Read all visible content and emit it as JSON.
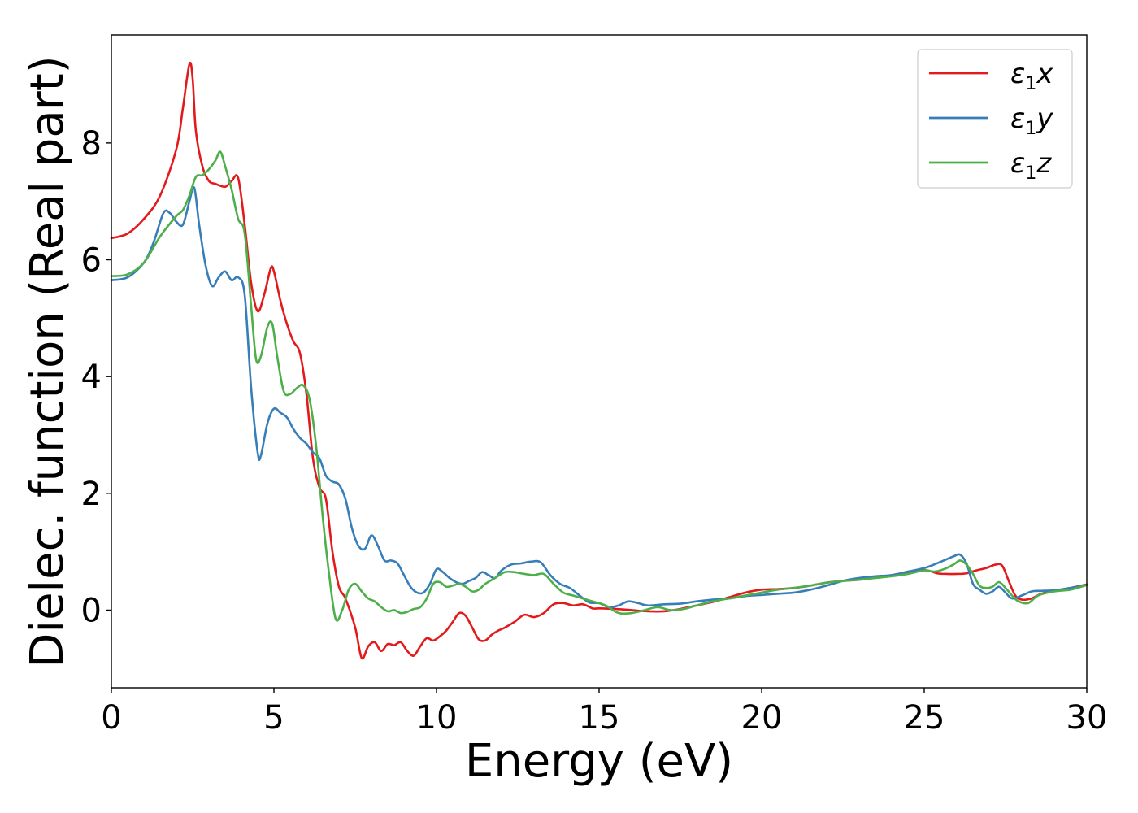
{
  "chart_data": {
    "type": "line",
    "title": "",
    "xlabel": "Energy (eV)",
    "ylabel": "Dielec. function (Real part)",
    "xlim": [
      0,
      30
    ],
    "ylim": [
      -1.33,
      9.85
    ],
    "xticks": [
      "0",
      "5",
      "10",
      "15",
      "20",
      "25",
      "30"
    ],
    "xtick_values": [
      0,
      5,
      10,
      15,
      20,
      25,
      30
    ],
    "yticks": [
      "0",
      "2",
      "4",
      "6",
      "8"
    ],
    "ytick_values": [
      0,
      2,
      4,
      6,
      8
    ],
    "grid": false,
    "legend_position": "top-right",
    "series": [
      {
        "name": "ε1x",
        "legend_main": "ε",
        "legend_sub": "1",
        "legend_tail": "x",
        "color": "#e31a1c",
        "x": [
          0,
          0.5,
          1,
          1.5,
          2,
          2.2,
          2.4,
          2.5,
          2.6,
          2.8,
          3,
          3.2,
          3.5,
          3.7,
          3.9,
          4.1,
          4.3,
          4.5,
          4.7,
          4.9,
          5,
          5.2,
          5.4,
          5.6,
          5.8,
          6,
          6.2,
          6.4,
          6.6,
          6.8,
          7,
          7.2,
          7.5,
          7.7,
          7.9,
          8.1,
          8.3,
          8.5,
          8.7,
          8.9,
          9.1,
          9.3,
          9.5,
          9.7,
          9.9,
          10.1,
          10.3,
          10.5,
          10.7,
          10.9,
          11.1,
          11.3,
          11.5,
          11.7,
          11.9,
          12.1,
          12.4,
          12.7,
          13,
          13.3,
          13.6,
          13.9,
          14.2,
          14.5,
          14.8,
          15,
          15.5,
          16,
          16.5,
          17,
          17.5,
          18,
          18.5,
          19,
          19.5,
          20,
          20.5,
          21,
          21.5,
          22,
          22.5,
          23,
          23.5,
          24,
          24.5,
          24.8,
          25.1,
          25.4,
          25.7,
          26,
          26.3,
          26.6,
          26.9,
          27.2,
          27.4,
          27.6,
          27.8,
          28,
          28.3,
          28.6,
          29,
          29.5,
          30
        ],
        "y": [
          6.37,
          6.45,
          6.7,
          7.1,
          7.9,
          8.6,
          9.35,
          9.1,
          8.2,
          7.6,
          7.35,
          7.3,
          7.25,
          7.35,
          7.4,
          6.6,
          5.6,
          5.12,
          5.4,
          5.85,
          5.8,
          5.3,
          4.9,
          4.6,
          4.4,
          3.7,
          2.6,
          2.1,
          1.9,
          1.0,
          0.4,
          0.2,
          -0.3,
          -0.82,
          -0.62,
          -0.55,
          -0.7,
          -0.58,
          -0.6,
          -0.55,
          -0.7,
          -0.78,
          -0.62,
          -0.48,
          -0.52,
          -0.45,
          -0.35,
          -0.2,
          -0.05,
          -0.1,
          -0.3,
          -0.5,
          -0.52,
          -0.42,
          -0.35,
          -0.3,
          -0.2,
          -0.08,
          -0.12,
          -0.05,
          0.1,
          0.12,
          0.08,
          0.1,
          0.03,
          0.03,
          0.02,
          0.0,
          -0.02,
          -0.02,
          0.02,
          0.08,
          0.14,
          0.22,
          0.3,
          0.35,
          0.36,
          0.38,
          0.42,
          0.47,
          0.5,
          0.52,
          0.56,
          0.6,
          0.65,
          0.68,
          0.68,
          0.63,
          0.62,
          0.62,
          0.63,
          0.68,
          0.72,
          0.78,
          0.76,
          0.5,
          0.25,
          0.18,
          0.2,
          0.28,
          0.33,
          0.38,
          0.44
        ]
      },
      {
        "name": "ε1y",
        "legend_main": "ε",
        "legend_sub": "1",
        "legend_tail": "y",
        "color": "#377eb8",
        "x": [
          0,
          0.5,
          1,
          1.3,
          1.6,
          1.8,
          2,
          2.2,
          2.4,
          2.55,
          2.7,
          2.9,
          3.1,
          3.3,
          3.5,
          3.7,
          3.9,
          4.1,
          4.3,
          4.5,
          4.6,
          4.8,
          5,
          5.2,
          5.4,
          5.6,
          5.8,
          6,
          6.2,
          6.4,
          6.6,
          6.8,
          7,
          7.2,
          7.4,
          7.6,
          7.8,
          8,
          8.2,
          8.4,
          8.6,
          8.8,
          9,
          9.2,
          9.4,
          9.6,
          9.8,
          10,
          10.2,
          10.4,
          10.6,
          10.8,
          11,
          11.2,
          11.4,
          11.6,
          11.8,
          12,
          12.3,
          12.6,
          12.9,
          13.2,
          13.5,
          13.8,
          14.1,
          14.4,
          14.7,
          15,
          15.3,
          15.6,
          15.9,
          16.2,
          16.5,
          17,
          17.5,
          18,
          18.5,
          19,
          19.5,
          20,
          20.5,
          21,
          21.5,
          22,
          22.5,
          23,
          23.5,
          24,
          24.5,
          25,
          25.3,
          25.6,
          25.9,
          26.1,
          26.3,
          26.5,
          26.7,
          26.9,
          27.1,
          27.3,
          27.5,
          27.7,
          28,
          28.3,
          28.6,
          29,
          29.5,
          30
        ],
        "y": [
          5.65,
          5.7,
          5.95,
          6.3,
          6.8,
          6.8,
          6.65,
          6.6,
          7.0,
          7.23,
          6.6,
          5.9,
          5.55,
          5.7,
          5.8,
          5.65,
          5.7,
          5.4,
          3.8,
          2.7,
          2.65,
          3.2,
          3.45,
          3.38,
          3.3,
          3.1,
          2.95,
          2.85,
          2.7,
          2.6,
          2.3,
          2.2,
          2.15,
          1.9,
          1.4,
          1.1,
          1.05,
          1.28,
          1.1,
          0.85,
          0.85,
          0.8,
          0.6,
          0.4,
          0.3,
          0.3,
          0.45,
          0.7,
          0.65,
          0.55,
          0.48,
          0.45,
          0.5,
          0.55,
          0.65,
          0.6,
          0.55,
          0.68,
          0.78,
          0.8,
          0.83,
          0.82,
          0.6,
          0.45,
          0.38,
          0.25,
          0.13,
          0.12,
          0.05,
          0.08,
          0.15,
          0.12,
          0.08,
          0.1,
          0.11,
          0.15,
          0.18,
          0.2,
          0.24,
          0.26,
          0.28,
          0.3,
          0.35,
          0.42,
          0.5,
          0.55,
          0.58,
          0.6,
          0.66,
          0.72,
          0.78,
          0.85,
          0.92,
          0.95,
          0.8,
          0.45,
          0.35,
          0.28,
          0.32,
          0.4,
          0.3,
          0.2,
          0.25,
          0.32,
          0.33,
          0.34,
          0.38,
          0.43
        ]
      },
      {
        "name": "ε1z",
        "legend_main": "ε",
        "legend_sub": "1",
        "legend_tail": "z",
        "color": "#4daf4a",
        "x": [
          0,
          0.5,
          1,
          1.5,
          2,
          2.2,
          2.4,
          2.6,
          2.8,
          3,
          3.2,
          3.35,
          3.5,
          3.7,
          3.9,
          4.1,
          4.3,
          4.45,
          4.6,
          4.8,
          4.95,
          5.1,
          5.3,
          5.5,
          5.7,
          5.9,
          6.1,
          6.3,
          6.5,
          6.7,
          6.9,
          7.1,
          7.3,
          7.5,
          7.7,
          7.9,
          8.1,
          8.3,
          8.5,
          8.7,
          8.9,
          9.1,
          9.3,
          9.5,
          9.7,
          9.9,
          10.1,
          10.3,
          10.5,
          10.7,
          10.9,
          11.1,
          11.3,
          11.5,
          11.8,
          12.1,
          12.4,
          12.7,
          13,
          13.3,
          13.6,
          13.9,
          14.2,
          14.5,
          14.8,
          15.2,
          15.6,
          16,
          16.4,
          16.8,
          17.2,
          17.6,
          18,
          18.5,
          19,
          19.5,
          20,
          20.5,
          21,
          21.5,
          22,
          22.5,
          23,
          23.5,
          24,
          24.5,
          25,
          25.3,
          25.6,
          25.9,
          26.1,
          26.3,
          26.5,
          26.7,
          26.9,
          27.1,
          27.3,
          27.5,
          27.7,
          27.9,
          28.2,
          28.5,
          29,
          29.5,
          30
        ],
        "y": [
          5.72,
          5.75,
          5.95,
          6.4,
          6.75,
          6.85,
          7.1,
          7.42,
          7.45,
          7.55,
          7.7,
          7.85,
          7.6,
          7.2,
          6.7,
          6.45,
          5.2,
          4.3,
          4.35,
          4.85,
          4.9,
          4.35,
          3.75,
          3.7,
          3.8,
          3.85,
          3.6,
          2.8,
          1.6,
          0.6,
          -0.15,
          0.0,
          0.35,
          0.45,
          0.32,
          0.2,
          0.15,
          0.05,
          -0.02,
          0.0,
          -0.05,
          -0.03,
          0.02,
          0.05,
          0.2,
          0.45,
          0.48,
          0.4,
          0.42,
          0.45,
          0.4,
          0.32,
          0.35,
          0.45,
          0.55,
          0.65,
          0.65,
          0.62,
          0.6,
          0.62,
          0.45,
          0.3,
          0.25,
          0.2,
          0.15,
          0.08,
          -0.05,
          -0.05,
          0.0,
          0.05,
          0.0,
          0.02,
          0.08,
          0.15,
          0.2,
          0.25,
          0.3,
          0.35,
          0.38,
          0.42,
          0.47,
          0.5,
          0.52,
          0.55,
          0.58,
          0.62,
          0.68,
          0.66,
          0.7,
          0.78,
          0.85,
          0.78,
          0.62,
          0.42,
          0.38,
          0.4,
          0.48,
          0.38,
          0.25,
          0.15,
          0.12,
          0.25,
          0.32,
          0.35,
          0.43
        ]
      }
    ]
  }
}
